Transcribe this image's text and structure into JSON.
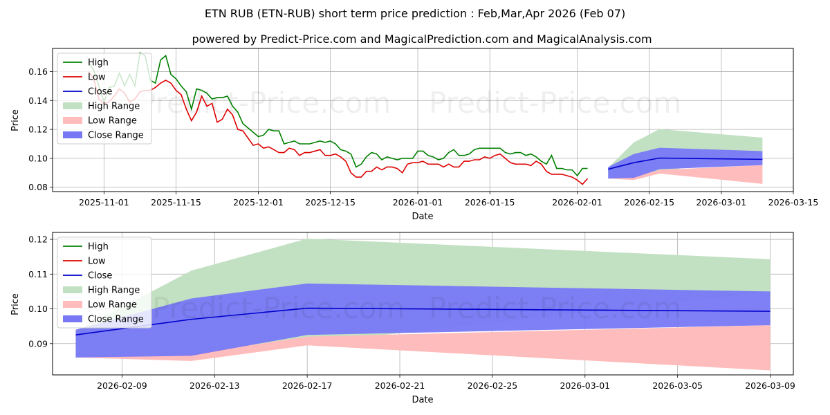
{
  "title": "ETN RUB (ETN-RUB) short term price prediction : Feb,Mar,Apr 2026 (Feb 07)",
  "subtitle": "powered by Predict-Price.com and MagicalPrediction.com and MagicalAnalysis.com",
  "watermark": "Predict-Price.com",
  "legend": [
    "High",
    "Low",
    "Close",
    "High Range",
    "Low Range",
    "Close Range"
  ],
  "colors": {
    "high": "#008000",
    "low": "#dd0000",
    "close": "#0000cc",
    "high_range": "#c2e0c2",
    "low_range": "#ffbcbc",
    "close_range": "#7878f5"
  },
  "chart_data": [
    {
      "type": "line",
      "name": "history-and-forecast",
      "xlabel": "Date",
      "ylabel": "Price",
      "xlim": [
        "2025-10-22",
        "2026-03-15"
      ],
      "ylim": [
        0.077,
        0.176
      ],
      "xticks": [
        "2025-11-01",
        "2025-11-15",
        "2025-12-01",
        "2025-12-15",
        "2026-01-01",
        "2026-01-15",
        "2026-02-01",
        "2026-02-15",
        "2026-03-01",
        "2026-03-15"
      ],
      "yticks": [
        0.08,
        0.1,
        0.12,
        0.14,
        0.16
      ],
      "ytick_labels": [
        "0.08",
        "0.10",
        "0.12",
        "0.14",
        "0.16"
      ],
      "history_start": "2025-10-29",
      "series": [
        {
          "name": "High",
          "values": [
            0.166,
            0.161,
            0.15,
            0.139,
            0.149,
            0.15,
            0.159,
            0.15,
            0.158,
            0.15,
            0.173,
            0.171,
            0.154,
            0.152,
            0.168,
            0.171,
            0.158,
            0.155,
            0.15,
            0.146,
            0.134,
            0.148,
            0.147,
            0.145,
            0.141,
            0.142,
            0.142,
            0.143,
            0.136,
            0.132,
            0.124,
            0.121,
            0.118,
            0.115,
            0.116,
            0.12,
            0.119,
            0.119,
            0.11,
            0.111,
            0.112,
            0.11,
            0.11,
            0.11,
            0.111,
            0.112,
            0.111,
            0.112,
            0.11,
            0.106,
            0.105,
            0.103,
            0.094,
            0.096,
            0.101,
            0.104,
            0.103,
            0.099,
            0.101,
            0.1,
            0.099,
            0.1,
            0.1,
            0.1,
            0.105,
            0.105,
            0.102,
            0.101,
            0.099,
            0.1,
            0.104,
            0.106,
            0.102,
            0.102,
            0.103,
            0.106,
            0.107,
            0.107,
            0.107,
            0.107,
            0.107,
            0.104,
            0.103,
            0.104,
            0.104,
            0.102,
            0.103,
            0.101,
            0.098,
            0.096,
            0.102,
            0.093,
            0.093,
            0.092,
            0.092,
            0.088,
            0.093,
            0.093
          ]
        },
        {
          "name": "Low",
          "values": [
            0.16,
            0.155,
            0.141,
            0.138,
            0.139,
            0.143,
            0.148,
            0.145,
            0.139,
            0.141,
            0.146,
            0.147,
            0.147,
            0.149,
            0.152,
            0.154,
            0.152,
            0.147,
            0.144,
            0.134,
            0.126,
            0.132,
            0.143,
            0.136,
            0.138,
            0.125,
            0.127,
            0.134,
            0.13,
            0.12,
            0.119,
            0.114,
            0.109,
            0.11,
            0.107,
            0.108,
            0.106,
            0.104,
            0.104,
            0.107,
            0.106,
            0.102,
            0.104,
            0.104,
            0.105,
            0.106,
            0.102,
            0.102,
            0.103,
            0.101,
            0.098,
            0.09,
            0.087,
            0.087,
            0.091,
            0.091,
            0.094,
            0.092,
            0.094,
            0.094,
            0.093,
            0.09,
            0.096,
            0.097,
            0.097,
            0.098,
            0.096,
            0.096,
            0.096,
            0.094,
            0.096,
            0.094,
            0.094,
            0.098,
            0.098,
            0.099,
            0.099,
            0.101,
            0.1,
            0.102,
            0.103,
            0.1,
            0.097,
            0.096,
            0.096,
            0.096,
            0.095,
            0.098,
            0.096,
            0.091,
            0.089,
            0.089,
            0.089,
            0.088,
            0.087,
            0.085,
            0.082,
            0.086
          ]
        },
        {
          "name": "Close",
          "x": [
            "2026-02-07",
            "2026-02-12",
            "2026-02-17",
            "2026-03-09"
          ],
          "values": [
            0.0925,
            0.097,
            0.1002,
            0.0993
          ]
        },
        {
          "name": "High Range",
          "x": [
            "2026-02-07",
            "2026-02-12",
            "2026-02-17",
            "2026-03-09"
          ],
          "upper": [
            0.0935,
            0.111,
            0.1202,
            0.1143
          ],
          "lower": [
            0.086,
            0.087,
            0.09,
            0.105
          ]
        },
        {
          "name": "Low Range",
          "x": [
            "2026-02-07",
            "2026-02-12",
            "2026-02-17",
            "2026-03-09"
          ],
          "upper": [
            0.086,
            0.087,
            0.092,
            0.0953
          ],
          "lower": [
            0.086,
            0.085,
            0.0895,
            0.0823
          ]
        },
        {
          "name": "Close Range",
          "x": [
            "2026-02-07",
            "2026-02-12",
            "2026-02-17",
            "2026-03-09"
          ],
          "upper": [
            0.094,
            0.103,
            0.1073,
            0.105
          ],
          "lower": [
            0.086,
            0.0865,
            0.0925,
            0.0953
          ]
        }
      ]
    },
    {
      "type": "line",
      "name": "forecast-zoom",
      "xlabel": "Date",
      "ylabel": "Price",
      "xlim": [
        "2026-02-06",
        "2026-03-10"
      ],
      "ylim": [
        0.081,
        0.122
      ],
      "xticks": [
        "2026-02-09",
        "2026-02-13",
        "2026-02-17",
        "2026-02-21",
        "2026-02-25",
        "2026-03-01",
        "2026-03-05",
        "2026-03-09"
      ],
      "yticks": [
        0.09,
        0.1,
        0.11,
        0.12
      ],
      "ytick_labels": [
        "0.09",
        "0.10",
        "0.11",
        "0.12"
      ]
    }
  ]
}
